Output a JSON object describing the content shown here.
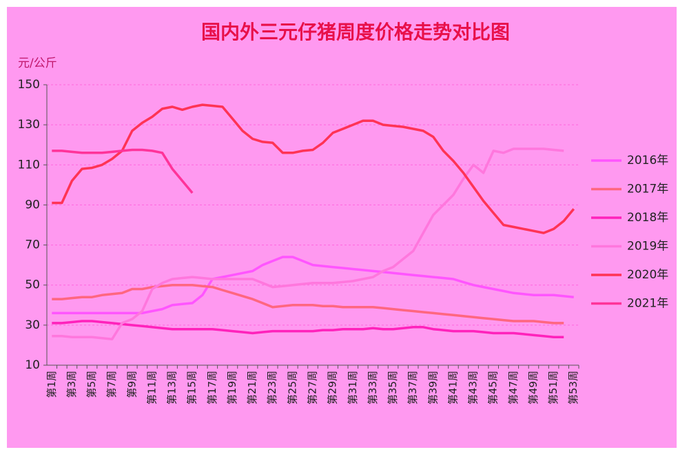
{
  "chart_data": {
    "type": "line",
    "title": "国内外三元仔猪周度价格走势对比图",
    "y_label": "元/公斤",
    "categories": [
      "第1周",
      null,
      "第3周",
      null,
      "第5周",
      null,
      "第7周",
      null,
      "第9周",
      null,
      "第11周",
      null,
      "第13周",
      null,
      "第15周",
      null,
      "第17周",
      null,
      "第19周",
      null,
      "第21周",
      null,
      "第23周",
      null,
      "第25周",
      null,
      "第27周",
      null,
      "第29周",
      null,
      "第31周",
      null,
      "第33周",
      null,
      "第35周",
      null,
      "第37周",
      null,
      "第39周",
      null,
      "第41周",
      null,
      "第43周",
      null,
      "第45周",
      null,
      "第47周",
      null,
      "第49周",
      null,
      "第51周",
      null,
      "第53周"
    ],
    "series": [
      {
        "name": "2016年",
        "color": "#ff55ff",
        "values": [
          36,
          36,
          36,
          36,
          36,
          36,
          36,
          36,
          36,
          36,
          37,
          38,
          40,
          40.5,
          41,
          45,
          53,
          54,
          55,
          56,
          57,
          60,
          62,
          64,
          64,
          62,
          60,
          59.5,
          59,
          58.5,
          58,
          57.5,
          57,
          56.5,
          56,
          55.5,
          55,
          54.5,
          54,
          53.5,
          53,
          51.5,
          50,
          49,
          48,
          47,
          46,
          45.5,
          45,
          45,
          45,
          44.5,
          44
        ]
      },
      {
        "name": "2017年",
        "color": "#ff6680",
        "values": [
          43,
          43,
          43.5,
          44,
          44,
          45,
          45.5,
          46,
          48,
          48,
          49,
          49.5,
          50,
          50,
          50,
          49.5,
          49,
          47.5,
          46,
          44.5,
          43,
          41,
          39,
          39.5,
          40,
          40,
          40,
          39.5,
          39.5,
          39,
          39,
          39,
          39,
          38.5,
          38,
          37.5,
          37,
          36.5,
          36,
          35.5,
          35,
          34.5,
          34,
          33.5,
          33,
          32.5,
          32,
          32,
          32,
          31.5,
          31,
          31,
          null
        ]
      },
      {
        "name": "2018年",
        "color": "#ff22bb",
        "values": [
          31,
          31,
          31.5,
          32,
          32,
          31.5,
          31,
          30.5,
          30,
          29.5,
          29,
          28.5,
          28,
          28,
          28,
          28,
          28,
          27.5,
          27,
          26.5,
          26,
          26.5,
          27,
          27,
          27,
          27,
          27,
          27.5,
          27.5,
          28,
          28,
          28,
          28.5,
          28,
          28,
          28.5,
          29,
          29,
          28,
          27.5,
          27,
          27,
          27,
          26.5,
          26,
          26,
          26,
          25.5,
          25,
          24.5,
          24,
          24,
          null
        ]
      },
      {
        "name": "2019年",
        "color": "#ff77dd",
        "values": [
          24.5,
          24.5,
          24,
          24,
          24,
          23.5,
          23,
          31,
          33,
          37,
          48,
          51,
          53,
          53.5,
          54,
          53.5,
          53,
          53,
          53,
          53,
          53,
          51,
          49,
          49.5,
          50,
          50.5,
          51,
          51,
          51,
          51.5,
          52,
          53,
          54,
          57,
          59,
          63,
          67,
          76,
          85,
          90,
          95,
          103,
          110,
          106,
          117,
          116,
          118,
          118,
          118,
          118,
          117.5,
          117,
          null
        ]
      },
      {
        "name": "2020年",
        "color": "#ff3355",
        "values": [
          91,
          91,
          102,
          108,
          108.5,
          110,
          113,
          117,
          127,
          131,
          134,
          138,
          139,
          137.5,
          139,
          140,
          139.5,
          139,
          133,
          127,
          123,
          121.5,
          121,
          116,
          116,
          117,
          117.5,
          121,
          126,
          128,
          130,
          132,
          132,
          130,
          129.5,
          129,
          128,
          127,
          124,
          117,
          112,
          106,
          99,
          92,
          86,
          80,
          79,
          78,
          77,
          76,
          78,
          82,
          88
        ]
      },
      {
        "name": "2021年",
        "color": "#ff3399",
        "values": [
          117,
          117,
          116.5,
          116,
          116,
          116,
          116.5,
          117,
          117.5,
          117.5,
          117,
          116,
          108,
          102,
          96,
          null,
          null,
          null,
          null,
          null,
          null,
          null,
          null,
          null,
          null,
          null,
          null,
          null,
          null,
          null,
          null,
          null,
          null,
          null,
          null,
          null,
          null,
          null,
          null,
          null,
          null,
          null,
          null,
          null,
          null,
          null,
          null,
          null,
          null,
          null,
          null,
          null,
          null
        ]
      }
    ],
    "ylim": [
      10,
      150
    ],
    "yticks": [
      10,
      30,
      50,
      70,
      90,
      110,
      130,
      150
    ],
    "grid": true,
    "legend": "right"
  }
}
